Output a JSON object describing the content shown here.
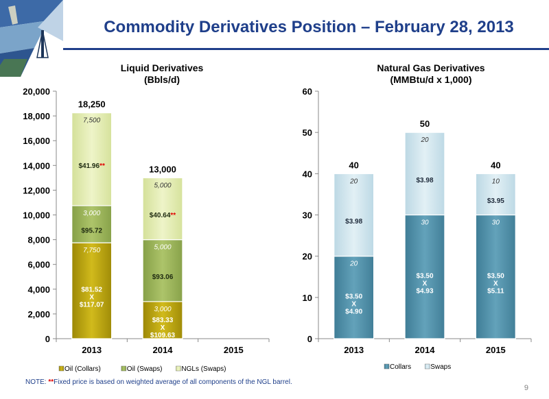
{
  "page": {
    "title": "Commodity Derivatives Position – February 28, 2013",
    "note_prefix": "NOTE: ",
    "note_stars": "**",
    "note_text": "Fixed price is based on weighted average of all components of the NGL barrel.",
    "page_number": "9"
  },
  "colors": {
    "title": "#1f3f8a",
    "oil_collars": "#c2ab10",
    "oil_swaps": "#9bb55a",
    "ngl_swaps": "#e2ecb0",
    "collars": "#5493ab",
    "swaps": "#d0e6ef",
    "price_star": "#e00000"
  },
  "chart_data": [
    {
      "type": "bar",
      "stacked": true,
      "title": "Liquid Derivatives",
      "subtitle": "(Bbls/d)",
      "categories": [
        "2013",
        "2014",
        "2015"
      ],
      "ylim": [
        0,
        20000
      ],
      "y_ticks": [
        "0",
        "2,000",
        "4,000",
        "6,000",
        "8,000",
        "10,000",
        "12,000",
        "14,000",
        "16,000",
        "18,000",
        "20,000"
      ],
      "totals": [
        "18,250",
        "13,000",
        ""
      ],
      "legend": [
        "Oil (Collars)",
        "Oil (Swaps)",
        "NGLs (Swaps)"
      ],
      "legend_position": "bottom",
      "series": [
        {
          "name": "Oil (Collars)",
          "values": [
            7750,
            3000,
            0
          ],
          "value_labels": [
            "7,750",
            "3,000",
            ""
          ],
          "price_labels": [
            [
              "$81.52",
              "X",
              "$117.07"
            ],
            [
              "$83.33",
              "X",
              "$109.63"
            ],
            []
          ]
        },
        {
          "name": "Oil (Swaps)",
          "values": [
            3000,
            5000,
            0
          ],
          "value_labels": [
            "3,000",
            "5,000",
            ""
          ],
          "price_labels": [
            [
              "$95.72"
            ],
            [
              "$93.06"
            ],
            []
          ]
        },
        {
          "name": "NGLs (Swaps)",
          "values": [
            7500,
            5000,
            0
          ],
          "value_labels": [
            "7,500",
            "5,000",
            ""
          ],
          "price_labels": [
            [
              "$41.96"
            ],
            [
              "$40.64"
            ],
            []
          ],
          "price_marks": [
            "**",
            "**",
            ""
          ]
        }
      ]
    },
    {
      "type": "bar",
      "stacked": true,
      "title": "Natural Gas Derivatives",
      "subtitle": "(MMBtu/d x 1,000)",
      "categories": [
        "2013",
        "2014",
        "2015"
      ],
      "ylim": [
        0,
        60
      ],
      "y_ticks": [
        "0",
        "10",
        "20",
        "30",
        "40",
        "50",
        "60"
      ],
      "totals": [
        "40",
        "50",
        "40"
      ],
      "legend": [
        "Collars",
        "Swaps"
      ],
      "legend_position": "bottom",
      "series": [
        {
          "name": "Collars",
          "values": [
            20,
            30,
            30
          ],
          "value_labels": [
            "20",
            "30",
            "30"
          ],
          "price_labels": [
            [
              "$3.50",
              "X",
              "$4.90"
            ],
            [
              "$3.50",
              "X",
              "$4.93"
            ],
            [
              "$3.50",
              "X",
              "$5.11"
            ]
          ]
        },
        {
          "name": "Swaps",
          "values": [
            20,
            20,
            10
          ],
          "value_labels": [
            "20",
            "20",
            "10"
          ],
          "price_labels": [
            [
              "$3.98"
            ],
            [
              "$3.98"
            ],
            [
              "$3.95"
            ]
          ]
        }
      ]
    }
  ]
}
